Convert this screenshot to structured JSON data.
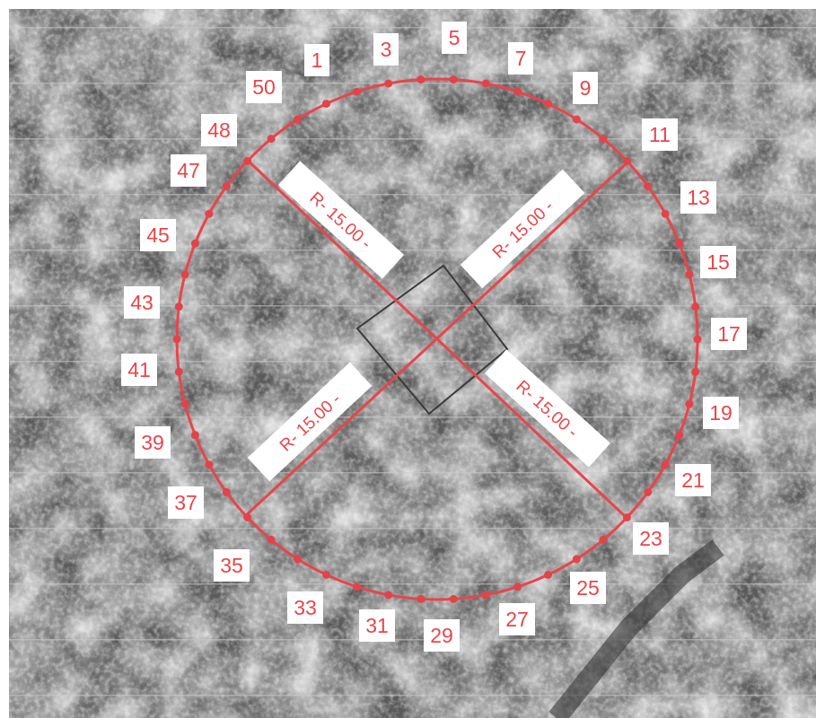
{
  "map": {
    "base": "grayscale aerial photograph, tree canopy",
    "overlay_color": "#e8454a",
    "marker_color": "#e0444a",
    "label_bg": "#ffffff",
    "square_color": "#3a3a3a",
    "radius_labels": [
      "R- 15.00 -",
      "R- 15.00 -",
      "R- 15.00 -",
      "R- 15.00 -"
    ],
    "point_labels": [
      "1",
      "3",
      "5",
      "7",
      "9",
      "11",
      "13",
      "15",
      "17",
      "19",
      "21",
      "23",
      "25",
      "27",
      "29",
      "31",
      "33",
      "35",
      "37",
      "39",
      "41",
      "43",
      "45",
      "47",
      "48",
      "50"
    ]
  }
}
